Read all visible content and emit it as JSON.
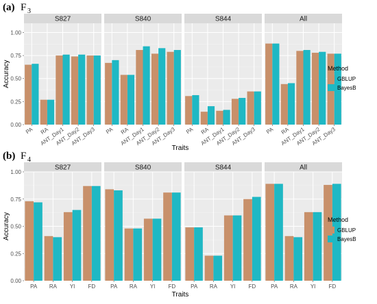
{
  "panels": [
    {
      "label": "(a)",
      "generation": "F",
      "generation_sub": "3"
    },
    {
      "label": "(b)",
      "generation": "F",
      "generation_sub": "4"
    }
  ],
  "legend": {
    "title": "Method",
    "items": [
      "GBLUP",
      "BayesB"
    ]
  },
  "colors": {
    "GBLUP": "#c8906a",
    "BayesB": "#1fb8c4",
    "panel_bg": "#ebebeb",
    "strip_bg": "#d9d9d9"
  },
  "chart_data": [
    {
      "type": "bar",
      "xlabel": "Traits",
      "ylabel": "Accuracy",
      "ylim": [
        0,
        1.1
      ],
      "yticks": [
        "0.00",
        "0.25",
        "0.50",
        "0.75",
        "1.00"
      ],
      "grid": true,
      "legend_position": "right",
      "series_names": [
        "GBLUP",
        "BayesB"
      ],
      "facets": [
        {
          "name": "S827",
          "categories": [
            "PA",
            "RA",
            "ANT_Day1",
            "ANT_Day2",
            "ANT_Day3"
          ],
          "series": [
            {
              "name": "GBLUP",
              "values": [
                0.65,
                0.27,
                0.75,
                0.74,
                0.75
              ]
            },
            {
              "name": "BayesB",
              "values": [
                0.66,
                0.27,
                0.76,
                0.76,
                0.75
              ]
            }
          ]
        },
        {
          "name": "S840",
          "categories": [
            "PA",
            "RA",
            "ANT_Day1",
            "ANT_Day2",
            "ANT_Day3"
          ],
          "series": [
            {
              "name": "GBLUP",
              "values": [
                0.67,
                0.54,
                0.81,
                0.77,
                0.79
              ]
            },
            {
              "name": "BayesB",
              "values": [
                0.7,
                0.54,
                0.85,
                0.83,
                0.81
              ]
            }
          ]
        },
        {
          "name": "S844",
          "categories": [
            "PA",
            "RA",
            "ANT_Day1",
            "ANT_Day2",
            "ANT_Day3"
          ],
          "series": [
            {
              "name": "GBLUP",
              "values": [
                0.31,
                0.14,
                0.15,
                0.28,
                0.36
              ]
            },
            {
              "name": "BayesB",
              "values": [
                0.32,
                0.2,
                0.16,
                0.29,
                0.36
              ]
            }
          ]
        },
        {
          "name": "All",
          "categories": [
            "PA",
            "RA",
            "ANT_Day1",
            "ANT_Day2",
            "ANT_Day3"
          ],
          "series": [
            {
              "name": "GBLUP",
              "values": [
                0.88,
                0.44,
                0.8,
                0.78,
                0.77
              ]
            },
            {
              "name": "BayesB",
              "values": [
                0.88,
                0.45,
                0.81,
                0.79,
                0.77
              ]
            }
          ]
        }
      ]
    },
    {
      "type": "bar",
      "xlabel": "Traits",
      "ylabel": "Accuracy",
      "ylim": [
        0,
        1.0
      ],
      "yticks": [
        "0.00",
        "0.25",
        "0.50",
        "0.75",
        "1.00"
      ],
      "grid": true,
      "legend_position": "right",
      "series_names": [
        "GBLUP",
        "BayesB"
      ],
      "facets": [
        {
          "name": "S827",
          "categories": [
            "PA",
            "RA",
            "YI",
            "FD"
          ],
          "series": [
            {
              "name": "GBLUP",
              "values": [
                0.73,
                0.41,
                0.63,
                0.87
              ]
            },
            {
              "name": "BayesB",
              "values": [
                0.72,
                0.4,
                0.65,
                0.87
              ]
            }
          ]
        },
        {
          "name": "S840",
          "categories": [
            "PA",
            "RA",
            "YI",
            "FD"
          ],
          "series": [
            {
              "name": "GBLUP",
              "values": [
                0.84,
                0.48,
                0.57,
                0.81
              ]
            },
            {
              "name": "BayesB",
              "values": [
                0.83,
                0.48,
                0.57,
                0.81
              ]
            }
          ]
        },
        {
          "name": "S844",
          "categories": [
            "PA",
            "RA",
            "YI",
            "FD"
          ],
          "series": [
            {
              "name": "GBLUP",
              "values": [
                0.49,
                0.23,
                0.6,
                0.75
              ]
            },
            {
              "name": "BayesB",
              "values": [
                0.49,
                0.23,
                0.6,
                0.77
              ]
            }
          ]
        },
        {
          "name": "All",
          "categories": [
            "PA",
            "RA",
            "YI",
            "FD"
          ],
          "series": [
            {
              "name": "GBLUP",
              "values": [
                0.89,
                0.41,
                0.63,
                0.88
              ]
            },
            {
              "name": "BayesB",
              "values": [
                0.89,
                0.4,
                0.63,
                0.89
              ]
            }
          ]
        }
      ]
    }
  ]
}
